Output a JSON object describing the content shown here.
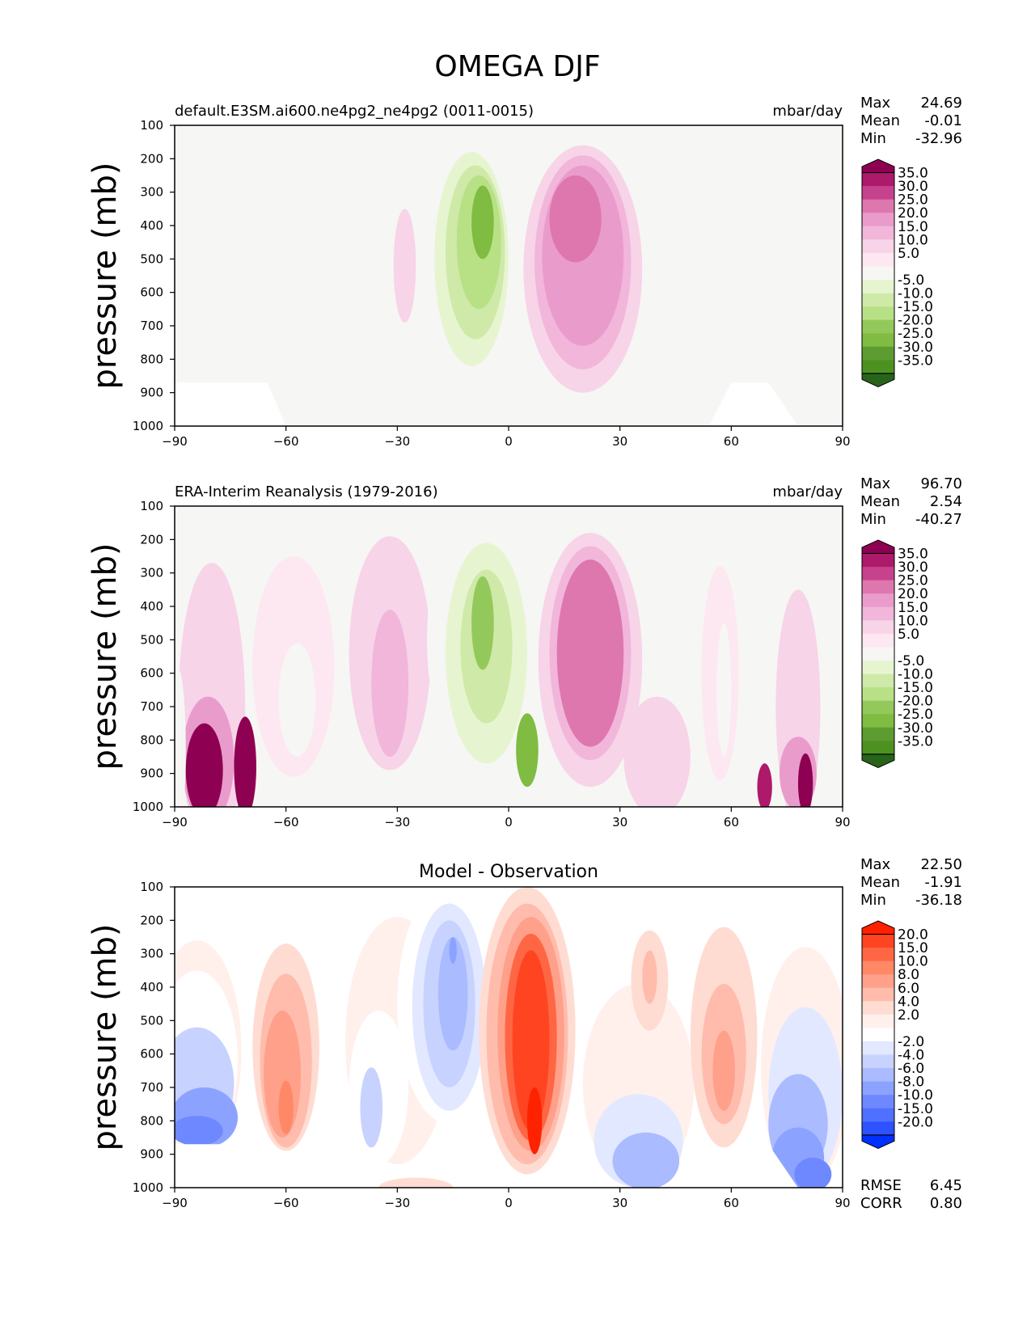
{
  "figure_title": "OMEGA DJF",
  "chart_data": [
    {
      "type": "heatmap",
      "id": "model",
      "title_left": "default.E3SM.ai600.ne4pg2_ne4pg2 (0011-0015)",
      "title_center": "",
      "units": "mbar/day",
      "ylabel": "pressure (mb)",
      "xlabel": "",
      "xlim": [
        -90,
        90
      ],
      "ylim": [
        1000,
        100
      ],
      "x_ticks": [
        "−90",
        "−60",
        "−30",
        "0",
        "30",
        "60",
        "90"
      ],
      "y_ticks": [
        "100",
        "200",
        "300",
        "400",
        "500",
        "600",
        "700",
        "800",
        "900",
        "1000"
      ],
      "stats": [
        {
          "label": "Max",
          "value": "24.69"
        },
        {
          "label": "Mean",
          "value": "-0.01"
        },
        {
          "label": "Min",
          "value": "-32.96"
        }
      ],
      "colorbar_labels": [
        "35.0",
        "30.0",
        "25.0",
        "20.0",
        "15.0",
        "10.0",
        "5.0",
        "-5.0",
        "-10.0",
        "-15.0",
        "-20.0",
        "-25.0",
        "-30.0",
        "-35.0"
      ],
      "colorbar_colors": [
        "#8e0152",
        "#ad1a6c",
        "#c7428c",
        "#de77ae",
        "#e99ccc",
        "#f1b6da",
        "#f7d4e8",
        "#fde7f1",
        "#f6f6f4",
        "#e6f5d0",
        "#cfe9a9",
        "#b8e186",
        "#93c95b",
        "#7fbc41",
        "#5c9c30",
        "#4d9221",
        "#276419"
      ],
      "features": [
        {
          "x": -28,
          "p": 520,
          "rx": 3,
          "rp": 170,
          "v": 5
        },
        {
          "x": -10,
          "p": 520,
          "rx": 13,
          "rp": 370,
          "v": -10
        },
        {
          "x": -10,
          "p": 500,
          "rx": 10,
          "rp": 320,
          "v": -15
        },
        {
          "x": -9,
          "p": 480,
          "rx": 8,
          "rp": 260,
          "v": -20
        },
        {
          "x": -8,
          "p": 450,
          "rx": 6,
          "rp": 200,
          "v": -25
        },
        {
          "x": -7,
          "p": 390,
          "rx": 3,
          "rp": 110,
          "v": -35
        },
        {
          "x": 20,
          "p": 530,
          "rx": 16,
          "rp": 370,
          "v": 5
        },
        {
          "x": 20,
          "p": 510,
          "rx": 13,
          "rp": 320,
          "v": 10
        },
        {
          "x": 20,
          "p": 490,
          "rx": 11,
          "rp": 270,
          "v": 15
        },
        {
          "x": 18,
          "p": 380,
          "rx": 7,
          "rp": 130,
          "v": 20
        }
      ]
    },
    {
      "type": "heatmap",
      "id": "obs",
      "title_left": "ERA-Interim Reanalysis (1979-2016)",
      "title_center": "",
      "units": "mbar/day",
      "ylabel": "pressure (mb)",
      "xlabel": "",
      "xlim": [
        -90,
        90
      ],
      "ylim": [
        1000,
        100
      ],
      "x_ticks": [
        "−90",
        "−60",
        "−30",
        "0",
        "30",
        "60",
        "90"
      ],
      "y_ticks": [
        "100",
        "200",
        "300",
        "400",
        "500",
        "600",
        "700",
        "800",
        "900",
        "1000"
      ],
      "stats": [
        {
          "label": "Max",
          "value": "96.70"
        },
        {
          "label": "Mean",
          "value": "2.54"
        },
        {
          "label": "Min",
          "value": "-40.27"
        }
      ],
      "colorbar_labels": [
        "35.0",
        "30.0",
        "25.0",
        "20.0",
        "15.0",
        "10.0",
        "5.0",
        "-5.0",
        "-10.0",
        "-15.0",
        "-20.0",
        "-25.0",
        "-30.0",
        "-35.0"
      ],
      "colorbar_colors": [
        "#8e0152",
        "#ad1a6c",
        "#c7428c",
        "#de77ae",
        "#e99ccc",
        "#f1b6da",
        "#f7d4e8",
        "#fde7f1",
        "#f6f6f4",
        "#e6f5d0",
        "#cfe9a9",
        "#b8e186",
        "#93c95b",
        "#7fbc41",
        "#5c9c30",
        "#4d9221",
        "#276419"
      ],
      "features": [
        {
          "x": -80,
          "p": 700,
          "rx": 9,
          "rp": 430,
          "v": 5
        },
        {
          "x": -81,
          "p": 860,
          "rx": 7,
          "rp": 190,
          "v": 15
        },
        {
          "x": -82,
          "p": 890,
          "rx": 5,
          "rp": 140,
          "v": 35
        },
        {
          "x": -71,
          "p": 880,
          "rx": 3,
          "rp": 150,
          "v": 35
        },
        {
          "x": -89,
          "p": 830,
          "rx": 2,
          "rp": 240,
          "v": -10
        },
        {
          "x": -58,
          "p": 580,
          "rx": 11,
          "rp": 330,
          "v": -5
        },
        {
          "x": -57,
          "p": 680,
          "rx": 5,
          "rp": 170,
          "v": -10
        },
        {
          "x": -32,
          "p": 540,
          "rx": 11,
          "rp": 350,
          "v": 5
        },
        {
          "x": -32,
          "p": 630,
          "rx": 5,
          "rp": 220,
          "v": 10
        },
        {
          "x": -7,
          "p": 500,
          "rx": 15,
          "rp": 420,
          "v": -10
        },
        {
          "x": -6,
          "p": 540,
          "rx": 11,
          "rp": 330,
          "v": -15
        },
        {
          "x": -6,
          "p": 520,
          "rx": 7,
          "rp": 230,
          "v": -20
        },
        {
          "x": -7,
          "p": 450,
          "rx": 3,
          "rp": 140,
          "v": -30
        },
        {
          "x": 5,
          "p": 830,
          "rx": 3,
          "rp": 110,
          "v": -35
        },
        {
          "x": 22,
          "p": 560,
          "rx": 14,
          "rp": 380,
          "v": 5
        },
        {
          "x": 22,
          "p": 540,
          "rx": 11,
          "rp": 320,
          "v": 10
        },
        {
          "x": 22,
          "p": 540,
          "rx": 9,
          "rp": 280,
          "v": 20
        },
        {
          "x": 40,
          "p": 850,
          "rx": 9,
          "rp": 180,
          "v": 5
        },
        {
          "x": 57,
          "p": 600,
          "rx": 5,
          "rp": 320,
          "v": -5
        },
        {
          "x": 58,
          "p": 650,
          "rx": 2,
          "rp": 200,
          "v": -10
        },
        {
          "x": 78,
          "p": 700,
          "rx": 6,
          "rp": 350,
          "v": 5
        },
        {
          "x": 78,
          "p": 900,
          "rx": 5,
          "rp": 110,
          "v": 15
        },
        {
          "x": 80,
          "p": 930,
          "rx": 2,
          "rp": 90,
          "v": 35
        },
        {
          "x": 69,
          "p": 940,
          "rx": 2,
          "rp": 70,
          "v": 30
        }
      ]
    },
    {
      "type": "heatmap",
      "id": "diff",
      "title_left": "",
      "title_center": "Model - Observation",
      "units": "",
      "ylabel": "pressure (mb)",
      "xlabel": "",
      "xlim": [
        -90,
        90
      ],
      "ylim": [
        1000,
        100
      ],
      "x_ticks": [
        "−90",
        "−60",
        "−30",
        "0",
        "30",
        "60",
        "90"
      ],
      "y_ticks": [
        "100",
        "200",
        "300",
        "400",
        "500",
        "600",
        "700",
        "800",
        "900",
        "1000"
      ],
      "stats": [
        {
          "label": "Max",
          "value": "22.50"
        },
        {
          "label": "Mean",
          "value": "-1.91"
        },
        {
          "label": "Min",
          "value": "-36.18"
        }
      ],
      "bottom_stats": [
        {
          "label": "RMSE",
          "value": "6.45"
        },
        {
          "label": "CORR",
          "value": "0.80"
        }
      ],
      "colorbar_labels": [
        "20.0",
        "15.0",
        "10.0",
        "8.0",
        "6.0",
        "4.0",
        "2.0",
        "-2.0",
        "-4.0",
        "-6.0",
        "-8.0",
        "-10.0",
        "-15.0",
        "-20.0"
      ],
      "colorbar_colors": [
        "#ff2200",
        "#ff4422",
        "#ff6644",
        "#ff8866",
        "#ffa08a",
        "#ffbcac",
        "#ffdcd2",
        "#fff0ec",
        "#ffffff",
        "#e2e8ff",
        "#c8d2ff",
        "#aabbff",
        "#8ca2ff",
        "#6e88ff",
        "#5070ff",
        "#2e52ff",
        "#0030ff"
      ],
      "features": [
        {
          "x": -84,
          "p": 590,
          "rx": 12,
          "rp": 330,
          "v": -2
        },
        {
          "x": -84,
          "p": 620,
          "rx": 11,
          "rp": 270,
          "v": -4
        },
        {
          "x": -84,
          "p": 690,
          "rx": 10,
          "rp": 170,
          "v": -8
        },
        {
          "x": -82,
          "p": 790,
          "rx": 9,
          "rp": 90,
          "v": -15
        },
        {
          "x": -84,
          "p": 830,
          "rx": 7,
          "rp": 45,
          "v": -20
        },
        {
          "x": -60,
          "p": 580,
          "rx": 9,
          "rp": 310,
          "v": 2
        },
        {
          "x": -60,
          "p": 620,
          "rx": 7,
          "rp": 260,
          "v": 4
        },
        {
          "x": -61,
          "p": 660,
          "rx": 5,
          "rp": 190,
          "v": 6
        },
        {
          "x": -60,
          "p": 760,
          "rx": 2,
          "rp": 80,
          "v": 8
        },
        {
          "x": -30,
          "p": 560,
          "rx": 14,
          "rp": 370,
          "v": -2
        },
        {
          "x": -35,
          "p": 700,
          "rx": 8,
          "rp": 230,
          "v": -4
        },
        {
          "x": -37,
          "p": 760,
          "rx": 3,
          "rp": 120,
          "v": -8
        },
        {
          "x": -16,
          "p": 450,
          "rx": 14,
          "rp": 360,
          "v": -4
        },
        {
          "x": -16,
          "p": 460,
          "rx": 10,
          "rp": 310,
          "v": -6
        },
        {
          "x": -16,
          "p": 450,
          "rx": 7,
          "rp": 250,
          "v": -8
        },
        {
          "x": -15,
          "p": 420,
          "rx": 4,
          "rp": 170,
          "v": -10
        },
        {
          "x": -15,
          "p": 290,
          "rx": 1,
          "rp": 40,
          "v": -15
        },
        {
          "x": 5,
          "p": 530,
          "rx": 13,
          "rp": 430,
          "v": 2
        },
        {
          "x": 5,
          "p": 540,
          "rx": 11,
          "rp": 390,
          "v": 4
        },
        {
          "x": 6,
          "p": 540,
          "rx": 9,
          "rp": 350,
          "v": 6
        },
        {
          "x": 6,
          "p": 550,
          "rx": 7,
          "rp": 310,
          "v": 10
        },
        {
          "x": 6,
          "p": 560,
          "rx": 5,
          "rp": 270,
          "v": 15
        },
        {
          "x": 7,
          "p": 800,
          "rx": 2,
          "rp": 100,
          "v": 20
        },
        {
          "x": 35,
          "p": 690,
          "rx": 15,
          "rp": 300,
          "v": -2
        },
        {
          "x": 35,
          "p": 860,
          "rx": 12,
          "rp": 140,
          "v": -6
        },
        {
          "x": 37,
          "p": 920,
          "rx": 9,
          "rp": 85,
          "v": -10
        },
        {
          "x": 38,
          "p": 380,
          "rx": 5,
          "rp": 150,
          "v": 2
        },
        {
          "x": 38,
          "p": 370,
          "rx": 2,
          "rp": 80,
          "v": 4
        },
        {
          "x": 58,
          "p": 550,
          "rx": 9,
          "rp": 330,
          "v": 2
        },
        {
          "x": 58,
          "p": 600,
          "rx": 6,
          "rp": 210,
          "v": 4
        },
        {
          "x": 58,
          "p": 650,
          "rx": 3,
          "rp": 120,
          "v": 6
        },
        {
          "x": 80,
          "p": 640,
          "rx": 12,
          "rp": 360,
          "v": -2
        },
        {
          "x": 80,
          "p": 720,
          "rx": 10,
          "rp": 260,
          "v": -6
        },
        {
          "x": 78,
          "p": 810,
          "rx": 8,
          "rp": 150,
          "v": -10
        },
        {
          "x": 78,
          "p": 910,
          "rx": 7,
          "rp": 90,
          "v": -15
        },
        {
          "x": 82,
          "p": 960,
          "rx": 5,
          "rp": 50,
          "v": -20
        },
        {
          "x": -25,
          "p": 1000,
          "rx": 10,
          "rp": 30,
          "v": 2
        }
      ],
      "masks": [
        [
          [
            -90,
            870
          ],
          [
            -65,
            870
          ],
          [
            -60,
            1000
          ],
          [
            -90,
            1000
          ]
        ],
        [
          [
            54,
            1000
          ],
          [
            60,
            870
          ],
          [
            70,
            870
          ],
          [
            78,
            1000
          ]
        ]
      ]
    }
  ]
}
